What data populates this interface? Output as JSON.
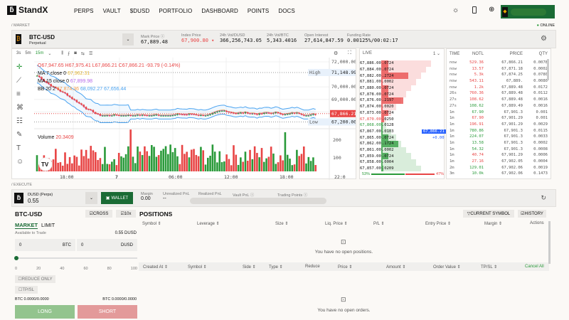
{
  "brand": "StandX",
  "nav": [
    "PERPS",
    "VAULT",
    "$DUSD",
    "PORTFOLIO",
    "DASHBOARD",
    "POINTS",
    "DOCS"
  ],
  "colors": {
    "accent": "#1a6b35",
    "up": "#2a9a3a",
    "down": "#e84545",
    "blue": "#2962ff"
  },
  "market": {
    "section": "/ MARKET",
    "status": "ONLINE",
    "symbol": "BTC-USD",
    "type": "Perpetual",
    "stats": [
      {
        "label": "Mark Price ⓘ",
        "value": "67,889.48"
      },
      {
        "label": "Index Price",
        "value": "67,900.80 ▾"
      },
      {
        "label": "24h Vol/DUSD",
        "value": "366,256,743.05"
      },
      {
        "label": "24h Vol/BTC",
        "value": "5,343.4016"
      },
      {
        "label": "Open Interest",
        "value": "27,614,847.59"
      },
      {
        "label": "Funding Rate",
        "value": "0.00125%/00:02:17"
      }
    ]
  },
  "chart": {
    "intervals": [
      "3s",
      "5m",
      "15m"
    ],
    "ohlc": "O67,947.65 H67,975.41 L67,866.21 C67,866.21 -93.79 (-0.14%)",
    "ma7_label": "MA 7 close 0",
    "ma7": "67,962.31",
    "ma15_label": "MA 15 close 0",
    "ma15": "67,899.98",
    "bb_label": "BB 20 2",
    "bb": [
      "67,874.36",
      "68,092.27",
      "67,656.44"
    ],
    "volume_label": "Volume",
    "volume": "20.3409",
    "y_ticks": [
      "72,000.00",
      "70,000.00",
      "69,000.00"
    ],
    "high_label": "High",
    "high": "71,148.99",
    "low_label": "Low",
    "low": "67,200.00",
    "last": "67,866.21",
    "vol_ticks": [
      "200",
      "100"
    ],
    "x_ticks": [
      "18:00",
      "7",
      "06:00",
      "12:00",
      "18:00",
      "22:0"
    ]
  },
  "orderbook": {
    "title": "LIVE",
    "group": "1",
    "asks": [
      [
        "67,886.00",
        ".0724"
      ],
      [
        "67,884.00",
        ".0724"
      ],
      [
        "67,882.00",
        ".2724"
      ],
      [
        "67,881.00",
        ".0002"
      ],
      [
        "67,880.00",
        ".0724"
      ],
      [
        "67,878.00",
        ".0724"
      ],
      [
        "67,876.00",
        ".2197"
      ],
      [
        "67,874.00",
        ".0020"
      ],
      [
        "67,873.00",
        ".0724"
      ],
      [
        "67,870.00",
        ".0250"
      ]
    ],
    "bids": [
      [
        "67,868.00",
        ".0128"
      ],
      [
        "67,867.00",
        ".0103"
      ],
      [
        "67,865.00",
        ".0724"
      ],
      [
        "67,862.00",
        ".1724"
      ],
      [
        "67,861.00",
        ".0002"
      ],
      [
        "67,859.00",
        ".0724"
      ],
      [
        "67,858.00",
        ".0004"
      ],
      [
        "67,857.00",
        ".0209"
      ]
    ],
    "mid": "67,866.21",
    "mid_change": "+0.00",
    "buy_pct": "53%",
    "sell_pct": "47%",
    "buy_ratio": 0.53
  },
  "trades": {
    "headers": [
      "TIME",
      "NOTL",
      "PRICE",
      "QTY"
    ],
    "rows": [
      [
        "now",
        "529.36",
        "67,866.21",
        "0.0078",
        "s"
      ],
      [
        "now",
        "13.57",
        "67,871.18",
        "0.0002",
        "s"
      ],
      [
        "now",
        "5.3k",
        "67,874.25",
        "0.0780",
        "s"
      ],
      [
        "now",
        "543.11",
        "67,889.",
        "0.0080",
        "s"
      ],
      [
        "now",
        "1.2k",
        "67,889.48",
        "0.0172",
        "s"
      ],
      [
        "26s",
        "760.36",
        "67,889.48",
        "0.0112",
        "s"
      ],
      [
        "27s",
        "108.62",
        "67,889.48",
        "0.0016",
        "s"
      ],
      [
        "27s",
        "108.62",
        "67,889.49",
        "0.0016",
        "b"
      ],
      [
        "1m",
        "67.90",
        "67,901.3",
        "0.001",
        "b"
      ],
      [
        "1m",
        "67.90",
        "67,901.29",
        "0.001",
        "s"
      ],
      [
        "1m",
        "196.91",
        "67,901.29",
        "0.0029",
        "s"
      ],
      [
        "1m",
        "780.86",
        "67,901.3",
        "0.0115",
        "b"
      ],
      [
        "1m",
        "224.07",
        "67,901.3",
        "0.0033",
        "b"
      ],
      [
        "1m",
        "13.58",
        "67,901.3",
        "0.0002",
        "b"
      ],
      [
        "1m",
        "54.32",
        "67,901.3",
        "0.0008",
        "b"
      ],
      [
        "1m",
        "40.74",
        "67,901.29",
        "0.0006",
        "s"
      ],
      [
        "1m",
        "27.16",
        "67,902.05",
        "0.0004",
        "s"
      ],
      [
        "2m",
        "129.01",
        "67,902.06",
        "0.0019",
        "b"
      ],
      [
        "3m",
        "10.0k",
        "67,902.06",
        "0.1473",
        "b"
      ]
    ]
  },
  "execute": {
    "section": "/ EXECUTE",
    "account": "DUSD (Perps)",
    "balance": "0.55",
    "wallet": "WALLET",
    "stats": [
      {
        "label": "Margin",
        "value": "0.00"
      },
      {
        "label": "Unrealized PnL",
        "value": "--"
      },
      {
        "label": "Realized PnL",
        "value": ""
      },
      {
        "label": "Vault PnL ⓘ",
        "value": ""
      },
      {
        "label": "Trading Points ⓘ",
        "value": ""
      }
    ]
  },
  "order": {
    "symbol": "BTC-USD",
    "cross": "CROSS",
    "leverage": "10x",
    "tabs": [
      "MARKET",
      "LIMIT"
    ],
    "avail_label": "Available to Trade",
    "avail": "0.55 DUSD",
    "qty": "0",
    "qty_unit": "BTC",
    "amt": "0",
    "amt_unit": "DUSD",
    "slider_ticks": [
      "0",
      "20",
      "40",
      "60",
      "80",
      "100"
    ],
    "slider_value": 0,
    "reduce_only": "REDUCE ONLY",
    "tpsl": "TP/SL",
    "long_info": "BTC 0.0000/0.0000",
    "short_info": "BTC 0.0000/0.0000",
    "long": "LONG",
    "short": "SHORT"
  },
  "positions": {
    "title": "POSITIONS",
    "filter": "CURRENT SYMBOL",
    "history": "HISTORY",
    "headers": [
      "Symbol ⇕",
      "Leverage ⇕",
      "Size ⇕",
      "Liq. Price ⇕",
      "P/L ⇕",
      "Entry Price ⇕",
      "Margin ⇕",
      "Actions"
    ],
    "empty": "You have no open positions.",
    "order_headers": [
      "Created At ⇕",
      "Symbol ⇕",
      "Side ⇕",
      "Type ⇕",
      "Reduce",
      "Price ⇕",
      "Amount ⇕",
      "Order Value ⇕",
      "TP/SL ⇕"
    ],
    "cancel_all": "Cancel All",
    "orders_empty": "You have no open orders."
  }
}
